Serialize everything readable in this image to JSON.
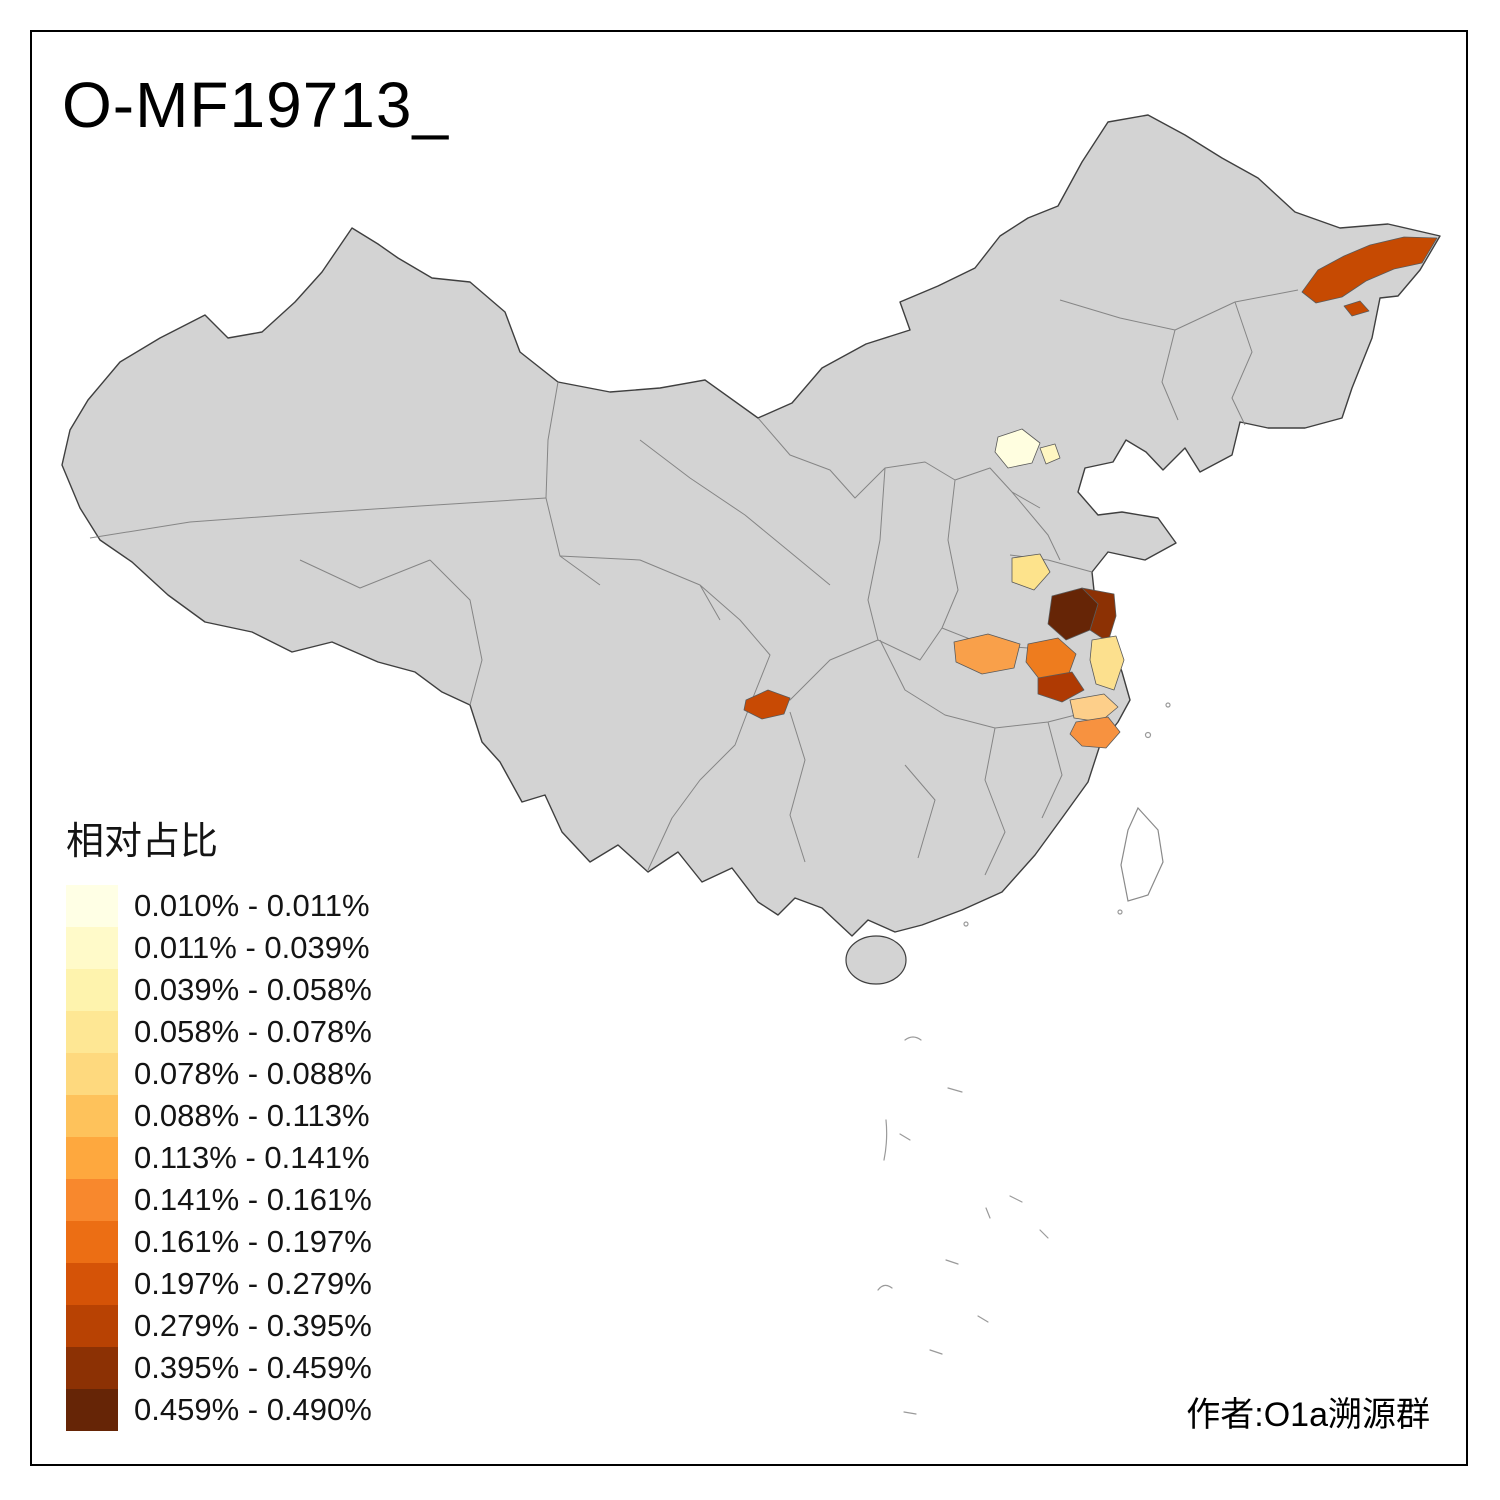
{
  "title": "O-MF19713_",
  "attribution": "作者:O1a溯源群",
  "legend": {
    "title": "相对占比",
    "items": [
      {
        "label": "0.010% - 0.011%",
        "color": "#FFFFE5"
      },
      {
        "label": "0.011% - 0.039%",
        "color": "#FFFAC9"
      },
      {
        "label": "0.039% - 0.058%",
        "color": "#FEF3AD"
      },
      {
        "label": "0.058% - 0.078%",
        "color": "#FEE794"
      },
      {
        "label": "0.078% - 0.088%",
        "color": "#FED97E"
      },
      {
        "label": "0.088% - 0.113%",
        "color": "#FEC25B"
      },
      {
        "label": "0.113% - 0.141%",
        "color": "#FEA83E"
      },
      {
        "label": "0.141% - 0.161%",
        "color": "#F8882D"
      },
      {
        "label": "0.161% - 0.197%",
        "color": "#EC6E14"
      },
      {
        "label": "0.197% - 0.279%",
        "color": "#D55307"
      },
      {
        "label": "0.279% - 0.395%",
        "color": "#B84203"
      },
      {
        "label": "0.395% - 0.459%",
        "color": "#8C3104"
      },
      {
        "label": "0.459% - 0.490%",
        "color": "#662506"
      }
    ]
  },
  "map": {
    "land_color": "#D3D3D3",
    "outline_color": "#3F3F3F",
    "province_line_color": "#7D7D7D",
    "sea_color": "#FFFFFF",
    "regions": [
      {
        "area": "heilongjiang-east",
        "color": "#C64A02"
      },
      {
        "area": "beijing",
        "color": "#FFFEE0"
      },
      {
        "area": "beijing-east-small",
        "color": "#FFF6C2"
      },
      {
        "area": "shandong-west",
        "color": "#FDE38C"
      },
      {
        "area": "xuzhou-core",
        "color": "#662506"
      },
      {
        "area": "xuzhou-ring",
        "color": "#8C3104"
      },
      {
        "area": "henan-central",
        "color": "#F9A04A"
      },
      {
        "area": "anhui-north",
        "color": "#EE7C1E"
      },
      {
        "area": "anhui-central",
        "color": "#AF3A03"
      },
      {
        "area": "jiangsu-coast",
        "color": "#FCE08E"
      },
      {
        "area": "chongqing-west",
        "color": "#C84A04"
      },
      {
        "area": "jiangsu-south",
        "color": "#FDCF8A"
      },
      {
        "area": "zhejiang-north",
        "color": "#F79240"
      }
    ]
  }
}
